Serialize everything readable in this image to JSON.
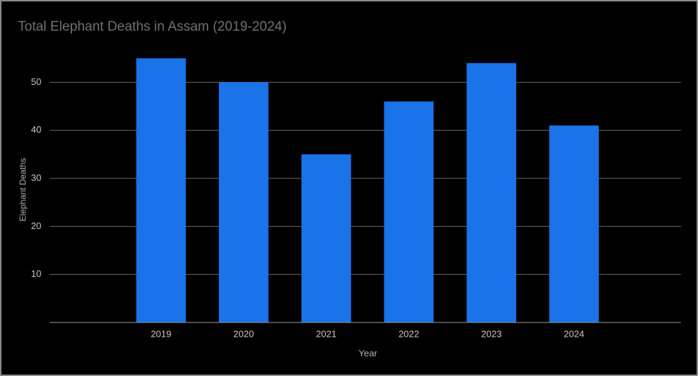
{
  "chart_data": {
    "type": "bar",
    "title": "Total Elephant Deaths in Assam (2019-2024)",
    "x_label": "Year",
    "y_label": "Elephant Deaths",
    "categories": [
      "2019",
      "2020",
      "2021",
      "2022",
      "2023",
      "2024"
    ],
    "values": [
      55,
      50,
      35,
      46,
      54,
      41
    ],
    "color": "#1a73e8",
    "ylim": [
      0,
      60
    ],
    "yticks": [
      10,
      20,
      30,
      40,
      50
    ],
    "grid": true
  }
}
